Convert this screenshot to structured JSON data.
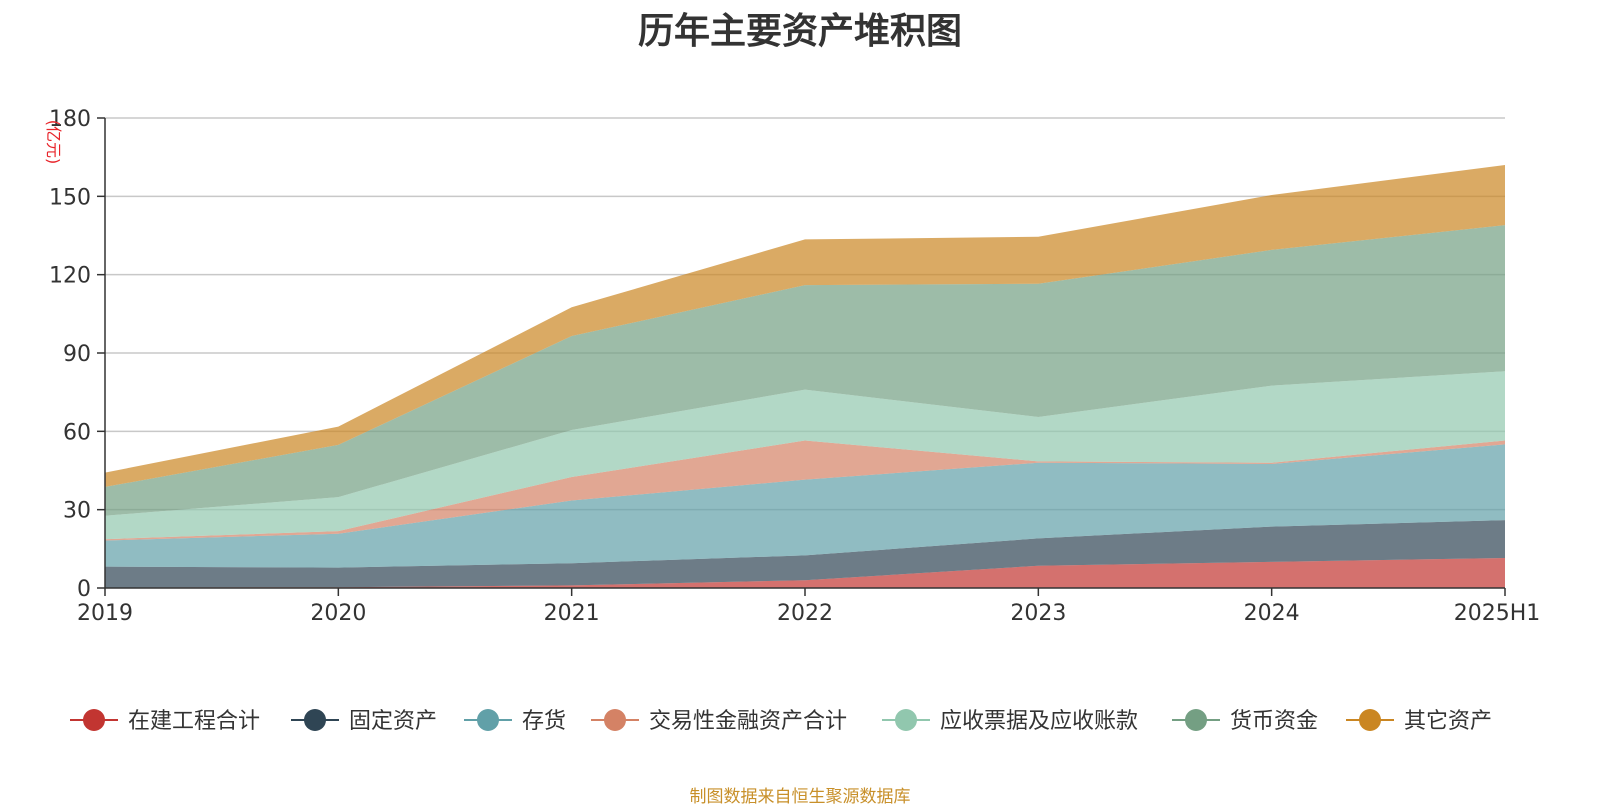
{
  "title": "历年主要资产堆积图",
  "source_note": "制图数据来自恒生聚源数据库",
  "chart_data": {
    "type": "area",
    "stacked": true,
    "title": "历年主要资产堆积图",
    "ylabel": "(亿元)",
    "xlabel": "",
    "ylim": [
      0,
      180
    ],
    "yticks": [
      "0",
      "30",
      "60",
      "90",
      "120",
      "150",
      "180"
    ],
    "categories": [
      "2019",
      "2020",
      "2021",
      "2022",
      "2023",
      "2024",
      "2025H1"
    ],
    "grid": true,
    "legend_position": "bottom",
    "series": [
      {
        "name": "在建工程合计",
        "color": "#c23531",
        "values": [
          0.2,
          0.3,
          1.0,
          3.0,
          8.5,
          10.0,
          11.5
        ]
      },
      {
        "name": "固定资产",
        "color": "#2f4554",
        "values": [
          8.0,
          7.5,
          8.5,
          9.5,
          10.5,
          13.5,
          14.5
        ]
      },
      {
        "name": "存货",
        "color": "#61a0a8",
        "values": [
          10.0,
          13.0,
          24.0,
          29.0,
          29.0,
          24.0,
          29.0
        ]
      },
      {
        "name": "交易性金融资产合计",
        "color": "#d48265",
        "values": [
          0.5,
          1.0,
          9.0,
          15.0,
          0.5,
          0.5,
          1.5
        ]
      },
      {
        "name": "应收票据及应收账款",
        "color": "#91c7ae",
        "values": [
          9.0,
          13.0,
          18.0,
          19.5,
          17.0,
          29.5,
          26.5
        ]
      },
      {
        "name": "货币资金",
        "color": "#749f83",
        "values": [
          11.0,
          20.0,
          36.0,
          40.0,
          51.0,
          52.0,
          56.0
        ]
      },
      {
        "name": "其它资产",
        "color": "#ca8622",
        "values": [
          5.5,
          7.0,
          11.0,
          17.5,
          18.0,
          21.0,
          23.0
        ]
      }
    ]
  }
}
